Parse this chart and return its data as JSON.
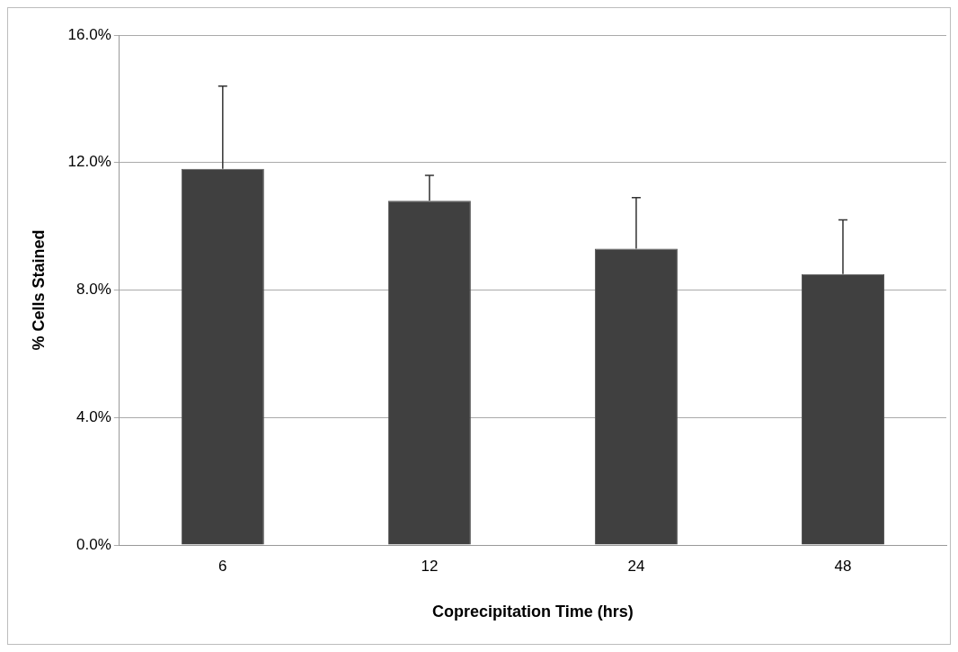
{
  "chart_data": {
    "type": "bar",
    "xlabel": "Coprecipitation Time (hrs)",
    "ylabel": "% Cells Stained",
    "categories": [
      "6",
      "12",
      "24",
      "48"
    ],
    "values": [
      11.8,
      10.8,
      9.3,
      8.5
    ],
    "errors": [
      [
        11.8,
        14.4
      ],
      [
        10.8,
        11.6
      ],
      [
        9.3,
        10.9
      ],
      [
        8.5,
        10.2
      ]
    ],
    "color": "#404040",
    "ylim": [
      0,
      16
    ],
    "yticks": [
      {
        "value": 0,
        "label": "0.0%"
      },
      {
        "value": 4,
        "label": "4.0%"
      },
      {
        "value": 8,
        "label": "8.0%"
      },
      {
        "value": 12,
        "label": "12.0%"
      },
      {
        "value": 16,
        "label": "16.0%"
      }
    ],
    "grid": "y",
    "legend": false
  }
}
